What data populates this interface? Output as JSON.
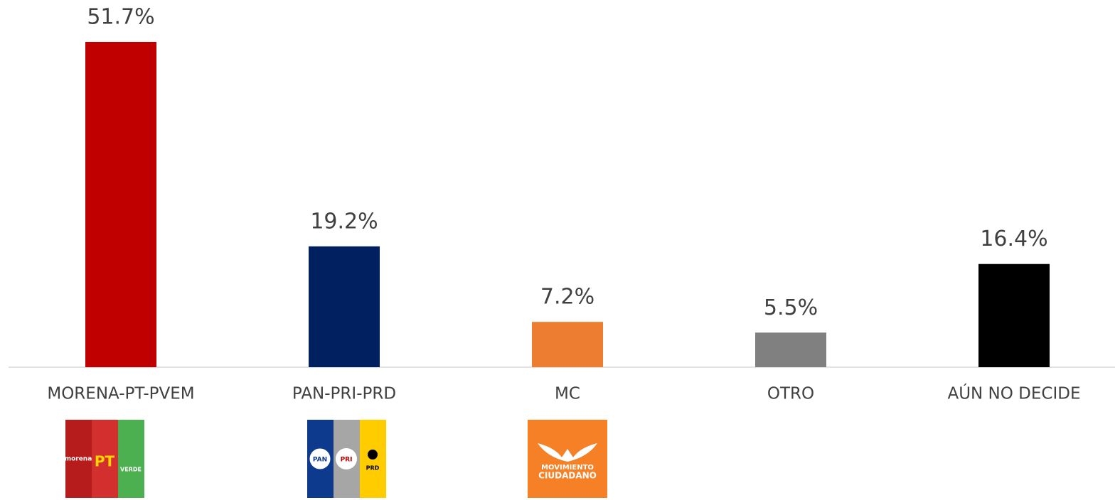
{
  "chart_data": {
    "type": "bar",
    "categories": [
      "MORENA-PT-PVEM",
      "PAN-PRI-PRD",
      "MC",
      "OTRO",
      "AÚN NO DECIDE"
    ],
    "values": [
      51.7,
      19.2,
      7.2,
      5.5,
      16.4
    ],
    "value_labels": [
      "51.7%",
      "19.2%",
      "7.2%",
      "5.5%",
      "16.4%"
    ],
    "colors": [
      "#c00000",
      "#002060",
      "#ed7d31",
      "#808080",
      "#000000"
    ]
  },
  "logos": [
    [
      "morena",
      "PT",
      "VERDE"
    ],
    [
      "PAN",
      "PRI",
      "PRD"
    ],
    [
      "MOVIMIENTO",
      "CIUDADANO"
    ]
  ]
}
